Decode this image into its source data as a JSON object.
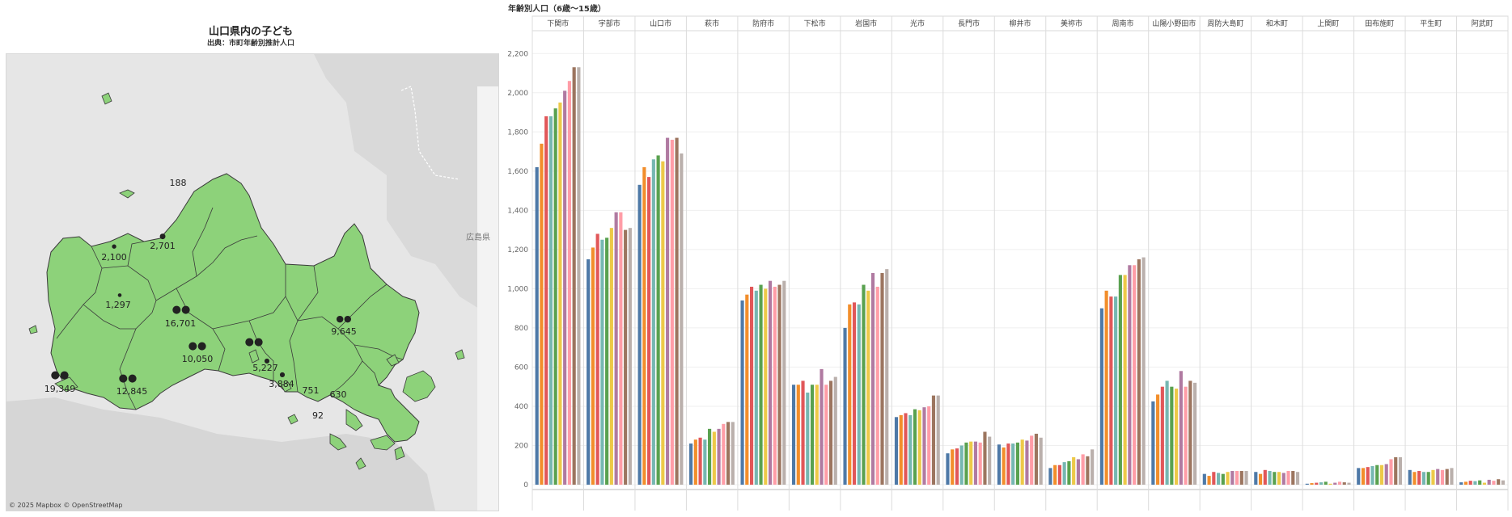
{
  "map": {
    "title": "山口県内の子ども",
    "subtitle": "出典：市町年齢別推計人口",
    "attribution": "© 2025 Mapbox © OpenStreetMap",
    "neighbor_label": "広島県",
    "land_color": "#8dd27a",
    "border_color": "#3a3a3a",
    "markers": [
      {
        "name": "下関市",
        "value": "19,349",
        "size": "large"
      },
      {
        "name": "宇部市",
        "value": "12,845",
        "size": "large"
      },
      {
        "name": "山口市",
        "value": "16,701",
        "size": "large"
      },
      {
        "name": "萩市",
        "value": "2,701",
        "size": "small"
      },
      {
        "name": "長門市",
        "value": "2,100",
        "size": "small"
      },
      {
        "name": "阿武町",
        "value": "188",
        "size": "tiny"
      },
      {
        "name": "美祢市",
        "value": "1,297",
        "size": "tiny"
      },
      {
        "name": "防府市",
        "value": "10,050",
        "size": "large"
      },
      {
        "name": "周南市",
        "value": "",
        "size": "large"
      },
      {
        "name": "下松市",
        "value": "5,227",
        "size": "small"
      },
      {
        "name": "光市",
        "value": "3,884",
        "size": "small"
      },
      {
        "name": "岩国市",
        "value": "9,645",
        "size": "large"
      },
      {
        "name": "田布施町",
        "value": "751",
        "size": "tiny"
      },
      {
        "name": "周防大島町",
        "value": "630",
        "size": "tiny"
      },
      {
        "name": "上関町",
        "value": "92",
        "size": "tiny"
      }
    ]
  },
  "chart_data": {
    "type": "bar",
    "title": "年齢別人口（6歳～15歳）",
    "categories": [
      "下関市",
      "宇部市",
      "山口市",
      "萩市",
      "防府市",
      "下松市",
      "岩国市",
      "光市",
      "長門市",
      "柳井市",
      "美祢市",
      "周南市",
      "山陽小野田市",
      "周防大島町",
      "和木町",
      "上関町",
      "田布施町",
      "平生町",
      "阿武町"
    ],
    "ylim": [
      0,
      2300
    ],
    "yticks": [
      0,
      200,
      400,
      600,
      800,
      1000,
      1200,
      1400,
      1600,
      1800,
      2000,
      2200
    ],
    "ytick_labels": [
      "0",
      "200",
      "400",
      "600",
      "800",
      "1,000",
      "1,200",
      "1,400",
      "1,600",
      "1,800",
      "2,000",
      "2,200"
    ],
    "grid": true,
    "colors": [
      "#4e79a7",
      "#f28e2b",
      "#e15759",
      "#76b7b2",
      "#59a14f",
      "#edc948",
      "#b07aa1",
      "#ff9da7",
      "#9c755f",
      "#bab0ac"
    ],
    "values": [
      [
        1620,
        1740,
        1880,
        1880,
        1920,
        1950,
        2010,
        2060,
        2130,
        2130
      ],
      [
        1150,
        1210,
        1280,
        1250,
        1260,
        1310,
        1390,
        1390,
        1300,
        1310
      ],
      [
        1530,
        1620,
        1570,
        1660,
        1680,
        1650,
        1770,
        1760,
        1770,
        1690
      ],
      [
        210,
        230,
        240,
        230,
        285,
        270,
        285,
        310,
        320,
        320
      ],
      [
        940,
        970,
        1010,
        990,
        1020,
        1000,
        1040,
        1010,
        1020,
        1040
      ],
      [
        510,
        510,
        530,
        470,
        510,
        510,
        590,
        510,
        530,
        550
      ],
      [
        800,
        920,
        930,
        920,
        1020,
        990,
        1080,
        1010,
        1080,
        1100
      ],
      [
        345,
        355,
        365,
        355,
        385,
        380,
        395,
        400,
        455,
        455
      ],
      [
        160,
        180,
        185,
        200,
        215,
        220,
        220,
        215,
        270,
        245
      ],
      [
        205,
        190,
        210,
        210,
        215,
        230,
        225,
        250,
        260,
        240
      ],
      [
        85,
        100,
        100,
        115,
        120,
        140,
        130,
        155,
        145,
        180
      ],
      [
        900,
        990,
        960,
        960,
        1070,
        1070,
        1120,
        1120,
        1150,
        1160
      ],
      [
        425,
        460,
        500,
        530,
        500,
        490,
        580,
        500,
        530,
        520
      ],
      [
        55,
        45,
        65,
        60,
        55,
        65,
        70,
        70,
        70,
        70
      ],
      [
        65,
        55,
        75,
        70,
        65,
        65,
        60,
        70,
        70,
        65
      ],
      [
        5,
        8,
        10,
        12,
        15,
        5,
        10,
        15,
        12,
        10
      ],
      [
        85,
        85,
        90,
        95,
        100,
        100,
        105,
        130,
        140,
        140
      ],
      [
        75,
        65,
        70,
        65,
        65,
        75,
        80,
        75,
        80,
        85
      ],
      [
        12,
        15,
        20,
        18,
        22,
        10,
        25,
        20,
        28,
        22
      ]
    ]
  }
}
